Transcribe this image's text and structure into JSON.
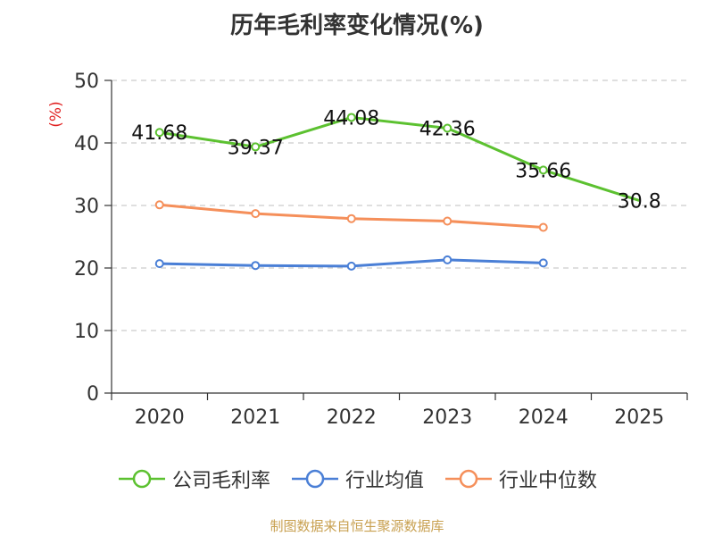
{
  "title": "历年毛利率变化情况(%)",
  "source": "制图数据来自恒生聚源数据库",
  "chart_data": {
    "type": "line",
    "title": "历年毛利率变化情况(%)",
    "ylabel": "(%)",
    "xlabel": "",
    "categories": [
      "2020",
      "2021",
      "2022",
      "2023",
      "2024",
      "2025"
    ],
    "ylim": [
      0,
      50
    ],
    "yticks": [
      0,
      10,
      20,
      30,
      40,
      50
    ],
    "grid": true,
    "legend_position": "bottom",
    "series": [
      {
        "name": "公司毛利率",
        "color": "#5cc130",
        "values": [
          41.68,
          39.37,
          44.08,
          42.36,
          35.66,
          30.8
        ],
        "labels": [
          "41.68",
          "39.37",
          "44.08",
          "42.36",
          "35.66",
          "30.8"
        ],
        "markers": [
          true,
          true,
          true,
          true,
          true,
          false
        ]
      },
      {
        "name": "行业均值",
        "color": "#4a7fd6",
        "values": [
          20.7,
          20.4,
          20.3,
          21.3,
          20.8,
          null
        ],
        "markers": [
          true,
          true,
          true,
          true,
          true,
          false
        ]
      },
      {
        "name": "行业中位数",
        "color": "#f58f5a",
        "values": [
          30.1,
          28.7,
          27.9,
          27.5,
          26.5,
          null
        ],
        "markers": [
          true,
          true,
          true,
          true,
          true,
          false
        ]
      }
    ]
  }
}
